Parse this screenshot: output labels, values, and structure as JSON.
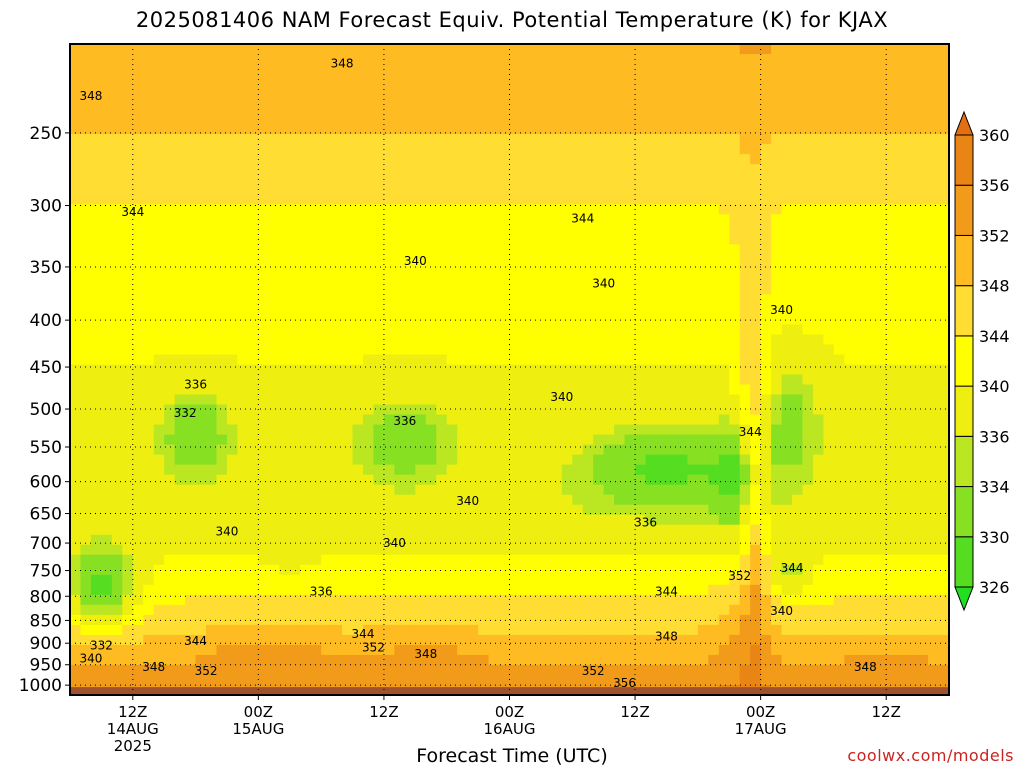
{
  "chart_data": {
    "type": "heatmap",
    "title": "2025081406 NAM Forecast Equiv. Potential Temperature (K) for KJAX",
    "xlabel": "Forecast Time (UTC)",
    "ylabel": "",
    "y_scale": "log-pressure",
    "y_reversed": true,
    "ylim": [
      1025,
      200
    ],
    "y_ticks": [
      250,
      300,
      350,
      400,
      450,
      500,
      550,
      600,
      650,
      700,
      750,
      800,
      850,
      900,
      950,
      1000
    ],
    "xlim": [
      6,
      90
    ],
    "x_ticks": [
      {
        "t": 12,
        "label1": "12Z",
        "label2": "14AUG",
        "label3": "2025"
      },
      {
        "t": 24,
        "label1": "00Z",
        "label2": "15AUG",
        "label3": ""
      },
      {
        "t": 36,
        "label1": "12Z",
        "label2": "",
        "label3": ""
      },
      {
        "t": 48,
        "label1": "00Z",
        "label2": "16AUG",
        "label3": ""
      },
      {
        "t": 60,
        "label1": "12Z",
        "label2": "",
        "label3": ""
      },
      {
        "t": 72,
        "label1": "00Z",
        "label2": "17AUG",
        "label3": ""
      },
      {
        "t": 84,
        "label1": "12Z",
        "label2": "",
        "label3": ""
      }
    ],
    "grid": true,
    "colorbar": {
      "levels": [
        326,
        330,
        334,
        336,
        340,
        344,
        348,
        352,
        356,
        360
      ],
      "labels": [
        "326",
        "330",
        "334",
        "336",
        "340",
        "344",
        "348",
        "352",
        "356",
        "360"
      ],
      "colors": [
        "#22dd22",
        "#55dd22",
        "#88e022",
        "#bbe622",
        "#eeee11",
        "#ffff00",
        "#ffdd33",
        "#ffbb22",
        "#f29a1a",
        "#e98515",
        "#e36f10"
      ]
    },
    "contour_labels": [
      {
        "value": "348",
        "t": 32,
        "p": 210
      },
      {
        "value": "348",
        "t": 8,
        "p": 228
      },
      {
        "value": "344",
        "t": 12,
        "p": 305
      },
      {
        "value": "344",
        "t": 55,
        "p": 310
      },
      {
        "value": "340",
        "t": 39,
        "p": 345
      },
      {
        "value": "340",
        "t": 57,
        "p": 365
      },
      {
        "value": "340",
        "t": 74,
        "p": 390
      },
      {
        "value": "336",
        "t": 18,
        "p": 470
      },
      {
        "value": "332",
        "t": 17,
        "p": 505
      },
      {
        "value": "336",
        "t": 38,
        "p": 515
      },
      {
        "value": "340",
        "t": 53,
        "p": 485
      },
      {
        "value": "344",
        "t": 71,
        "p": 530
      },
      {
        "value": "340",
        "t": 44,
        "p": 630
      },
      {
        "value": "340",
        "t": 21,
        "p": 680
      },
      {
        "value": "336",
        "t": 61,
        "p": 665
      },
      {
        "value": "340",
        "t": 37,
        "p": 700
      },
      {
        "value": "352",
        "t": 70,
        "p": 760
      },
      {
        "value": "344",
        "t": 75,
        "p": 745
      },
      {
        "value": "336",
        "t": 30,
        "p": 790
      },
      {
        "value": "344",
        "t": 63,
        "p": 790
      },
      {
        "value": "340",
        "t": 74,
        "p": 830
      },
      {
        "value": "344",
        "t": 34,
        "p": 880
      },
      {
        "value": "344",
        "t": 18,
        "p": 895
      },
      {
        "value": "332",
        "t": 9,
        "p": 905
      },
      {
        "value": "352",
        "t": 35,
        "p": 910
      },
      {
        "value": "348",
        "t": 40,
        "p": 925
      },
      {
        "value": "348",
        "t": 63,
        "p": 885
      },
      {
        "value": "340",
        "t": 8,
        "p": 935
      },
      {
        "value": "348",
        "t": 14,
        "p": 955
      },
      {
        "value": "352",
        "t": 19,
        "p": 965
      },
      {
        "value": "352",
        "t": 56,
        "p": 965
      },
      {
        "value": "356",
        "t": 59,
        "p": 995
      },
      {
        "value": "348",
        "t": 82,
        "p": 955
      }
    ]
  },
  "credit": "coolwx.com/models"
}
